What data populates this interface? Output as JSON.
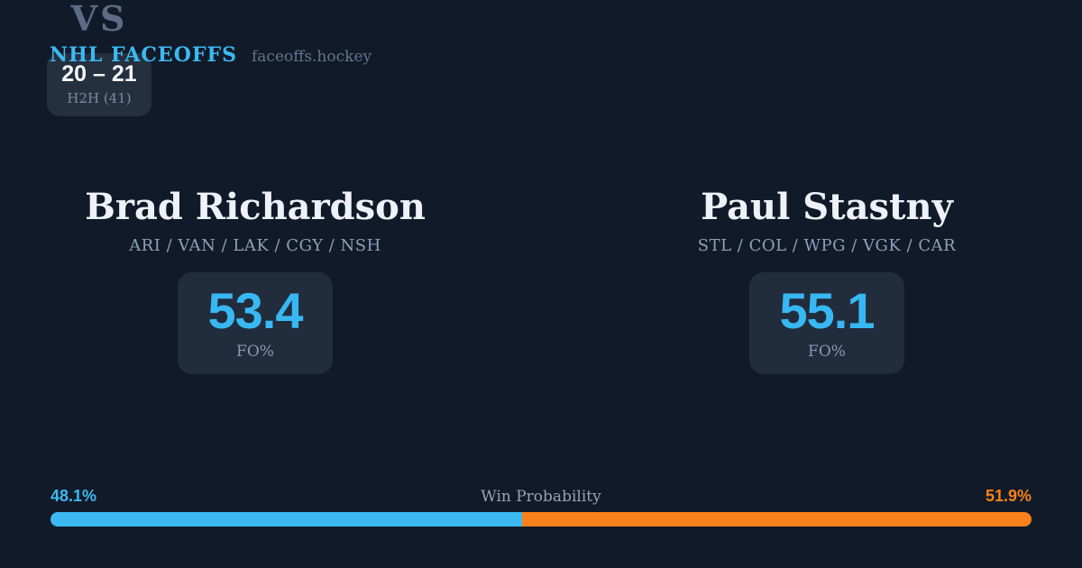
{
  "header": {
    "brand": "NHL FACEOFFS",
    "site": "faceoffs.hockey"
  },
  "matchup": {
    "vs_label": "VS",
    "players": [
      {
        "name": "Brad Richardson",
        "teams": "ARI / VAN / LAK / CGY / NSH",
        "stat_value": "53.4",
        "stat_label": "FO%"
      },
      {
        "name": "Paul Stastny",
        "teams": "STL / COL / WPG / VGK / CAR",
        "stat_value": "55.1",
        "stat_label": "FO%"
      }
    ],
    "h2h": {
      "score": "20 – 21",
      "label": "H2H (41)"
    }
  },
  "win_probability": {
    "title": "Win Probability",
    "left": {
      "text": "48.1%",
      "value": 48.1,
      "color": "#3db9f2"
    },
    "right": {
      "text": "51.9%",
      "value": 51.9,
      "color": "#f9821a"
    }
  },
  "colors": {
    "background": "#111a28",
    "card": "#212c3c",
    "accent_blue": "#38b8f2",
    "accent_orange": "#f97b16"
  },
  "chart_data": {
    "type": "bar",
    "title": "Win Probability",
    "categories": [
      "Brad Richardson",
      "Paul Stastny"
    ],
    "values": [
      48.1,
      51.9
    ],
    "colors": [
      "#3db9f2",
      "#f9821a"
    ]
  }
}
